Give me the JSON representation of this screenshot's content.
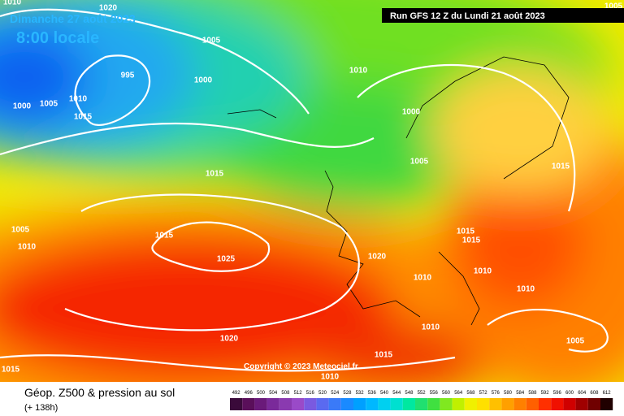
{
  "header": {
    "date": "Dimanche 27 août 2023",
    "time": "8:00 locale",
    "run": "Run GFS 12 Z du Lundi 21 août 2023"
  },
  "copyright": "Copyright © 2023 Meteociel.fr",
  "footer": {
    "title": "Géop. Z500 & pression au sol",
    "lead": "(+ 138h)"
  },
  "legend": {
    "values": [
      492,
      496,
      500,
      504,
      508,
      512,
      516,
      520,
      524,
      528,
      532,
      536,
      540,
      544,
      548,
      552,
      556,
      560,
      564,
      568,
      572,
      576,
      580,
      584,
      588,
      592,
      596,
      600,
      604,
      608,
      612
    ],
    "colors": [
      "#3a0a3a",
      "#5a0f5a",
      "#6a1a7a",
      "#7a2a9a",
      "#8a3ab0",
      "#9a4ac8",
      "#7a5ae0",
      "#5a6af0",
      "#3a7af8",
      "#1a8aff",
      "#00a0ff",
      "#00b8ff",
      "#00d0f0",
      "#00e0d0",
      "#00e8a0",
      "#20e070",
      "#40e040",
      "#80e820",
      "#c0f000",
      "#f0f000",
      "#ffe000",
      "#ffc000",
      "#ffa000",
      "#ff8000",
      "#ff6000",
      "#ff3000",
      "#f01000",
      "#d00000",
      "#a00000",
      "#700000",
      "#200000"
    ]
  },
  "isobar_labels": [
    1010,
    1020,
    1005,
    995,
    1000,
    1010,
    1005,
    1000,
    1015,
    1010,
    1000,
    1005,
    1015,
    1015,
    1005,
    1010,
    1015,
    1025,
    1015,
    1015,
    1020,
    1010,
    1010,
    1010,
    1010,
    1020,
    1005,
    1015,
    1015,
    1010,
    1005
  ]
}
